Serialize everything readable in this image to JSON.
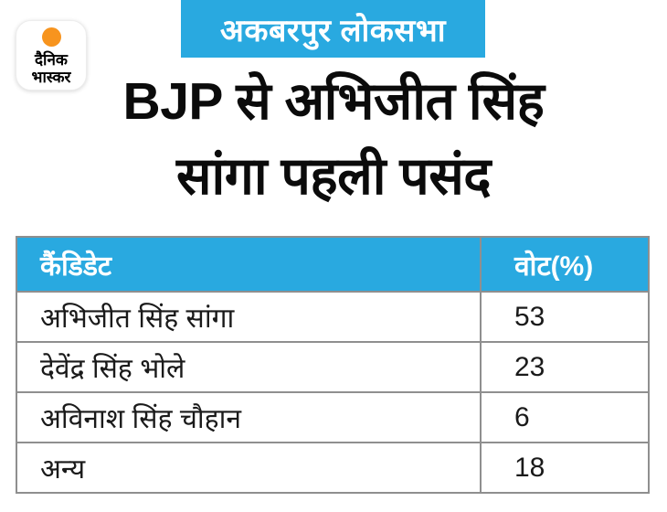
{
  "logo": {
    "line1": "दैनिक",
    "line2": "भास्कर",
    "dot_color": "#f7941e"
  },
  "banner": {
    "label": "अकबरपुर लोकसभा",
    "bg_color": "#29a9e0",
    "text_color": "#ffffff"
  },
  "headline": {
    "line1": "BJP से अभिजीत सिंह",
    "line2": "सांगा पहली पसंद"
  },
  "table": {
    "header_bg": "#29a9e0",
    "border_color": "#8f8f8f",
    "headers": {
      "candidate": "कैंडिडेट",
      "vote_pct": "वोट(%)"
    },
    "rows": [
      {
        "candidate": "अभिजीत सिंह सांगा",
        "vote_pct": "53"
      },
      {
        "candidate": "देवेंद्र सिंह भोले",
        "vote_pct": "23"
      },
      {
        "candidate": "अविनाश सिंह चौहान",
        "vote_pct": "6"
      },
      {
        "candidate": "अन्य",
        "vote_pct": "18"
      }
    ]
  },
  "chart_data": {
    "type": "table",
    "title": "BJP से अभिजीत सिंह सांगा पहली पसंद",
    "subtitle": "अकबरपुर लोकसभा",
    "columns": [
      "कैंडिडेट",
      "वोट(%)"
    ],
    "categories": [
      "अभिजीत सिंह सांगा",
      "देवेंद्र सिंह भोले",
      "अविनाश सिंह चौहान",
      "अन्य"
    ],
    "values": [
      53,
      23,
      6,
      18
    ],
    "unit": "percent"
  }
}
